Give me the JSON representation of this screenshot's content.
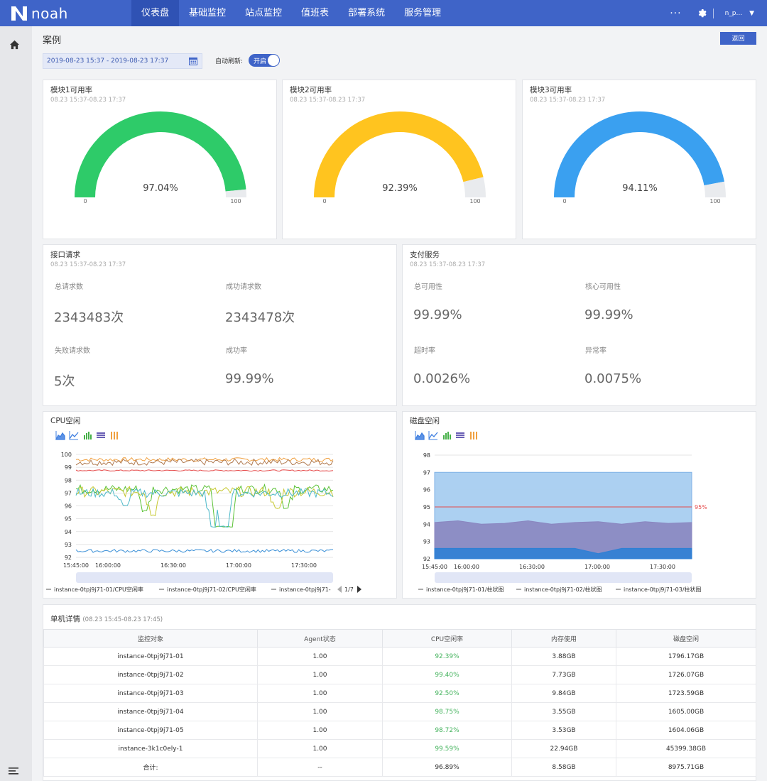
{
  "nav": {
    "logo_text": "noah",
    "items": [
      "仪表盘",
      "基础监控",
      "站点监控",
      "值班表",
      "部署系统",
      "服务管理"
    ],
    "more": "···",
    "user": "n_p..."
  },
  "page": {
    "title": "案例",
    "back_label": "返回",
    "date_range": "2019-08-23 15:37 - 2019-08-23 17:37",
    "auto_refresh_label": "自动刷新:",
    "toggle_label": "开启"
  },
  "gauges": [
    {
      "title": "模块1可用率",
      "range": "08.23 15:37-08.23 17:37",
      "value": 97.04,
      "value_text": "97.04%",
      "min": "0",
      "max": "100",
      "color": "#2ecb69"
    },
    {
      "title": "模块2可用率",
      "range": "08.23 15:37-08.23 17:37",
      "value": 92.39,
      "value_text": "92.39%",
      "min": "0",
      "max": "100",
      "color": "#ffc41f"
    },
    {
      "title": "模块3可用率",
      "range": "08.23 15:37-08.23 17:37",
      "value": 94.11,
      "value_text": "94.11%",
      "min": "0",
      "max": "100",
      "color": "#3aa0f0"
    }
  ],
  "api_panel": {
    "title": "接口请求",
    "range": "08.23 15:37-08.23 17:37",
    "stats": [
      {
        "label": "总请求数",
        "value": "2343483次"
      },
      {
        "label": "成功请求数",
        "value": "2343478次"
      },
      {
        "label": "失败请求数",
        "value": "5次"
      },
      {
        "label": "成功率",
        "value": "99.99%"
      }
    ]
  },
  "pay_panel": {
    "title": "支付服务",
    "range": "08.23 15:37-08.23 17:37",
    "stats": [
      {
        "label": "总可用性",
        "value": "99.99%"
      },
      {
        "label": "核心可用性",
        "value": "99.99%"
      },
      {
        "label": "超时率",
        "value": "0.0026%"
      },
      {
        "label": "异常率",
        "value": "0.0075%"
      }
    ]
  },
  "chart_data": [
    {
      "type": "line",
      "title": "CPU空闲",
      "x_ticks": [
        "15:45:00",
        "16:00:00",
        "16:30:00",
        "17:00:00",
        "17:30:00"
      ],
      "y_ticks": [
        92,
        93,
        94,
        95,
        96,
        97,
        98,
        99,
        100
      ],
      "ylim": [
        92,
        100
      ],
      "legend": [
        "instance-0tpj9j71-01/CPU空闲率",
        "instance-0tpj9j71-02/CPU空闲率",
        "instance-0tpj9j71-"
      ],
      "legend_page": "1/7",
      "series": [
        {
          "name": "instance-0tpj9j71-01/CPU空闲率",
          "color": "#f0a040",
          "base": 99.6,
          "noise": 0.15,
          "dips": []
        },
        {
          "name": "instance-0tpj9j71-02/CPU空闲率",
          "color": "#b07a50",
          "base": 99.4,
          "noise": 0.25,
          "dips": []
        },
        {
          "series_index": 3,
          "color": "#e54b4b",
          "base": 98.75,
          "noise": 0.05,
          "dips": []
        },
        {
          "series_index": 4,
          "color": "#5bc236",
          "base": 97.3,
          "noise": 0.35,
          "dips": [
            [
              0.27,
              95.6
            ],
            [
              0.55,
              94.4
            ],
            [
              0.6,
              94.4
            ],
            [
              0.82,
              95.8
            ]
          ]
        },
        {
          "series_index": 5,
          "color": "#c6c830",
          "base": 97.1,
          "noise": 0.4,
          "dips": [
            [
              0.3,
              95.3
            ],
            [
              0.78,
              95.8
            ]
          ]
        },
        {
          "series_index": 6,
          "color": "#4ab8c8",
          "base": 97.0,
          "noise": 0.35,
          "dips": [
            [
              0.19,
              96.0
            ],
            [
              0.53,
              94.4
            ],
            [
              0.58,
              94.3
            ]
          ]
        },
        {
          "series_index": 7,
          "color": "#3a8fd6",
          "base": 92.5,
          "noise": 0.12,
          "dips": []
        }
      ]
    },
    {
      "type": "area",
      "title": "磁盘空闲",
      "x_ticks": [
        "15:45:00",
        "16:00:00",
        "16:30:00",
        "17:00:00",
        "17:30:00"
      ],
      "y_ticks": [
        92,
        93,
        94,
        95,
        96,
        97,
        98
      ],
      "ylim": [
        92,
        98
      ],
      "threshold": 95,
      "threshold_label": "95%",
      "legend": [
        "instance-0tpj9j71-01/柱状图",
        "instance-0tpj9j71-02/柱状图",
        "instance-0tpj9j71-03/柱状图"
      ],
      "series": [
        {
          "name": "instance-0tpj9j71-01/柱状图",
          "color": "#a8cdf0",
          "values": [
            97.0,
            97.0,
            97.0,
            97.0,
            97.0,
            97.0,
            97.0,
            97.0,
            97.0,
            97.0,
            97.0,
            97.0
          ]
        },
        {
          "name": "instance-0tpj9j71-02/柱状图",
          "color": "#8a86c0",
          "values": [
            94.1,
            94.2,
            94.0,
            94.05,
            94.2,
            94.0,
            94.1,
            94.15,
            94.0,
            94.15,
            94.05,
            94.1
          ]
        },
        {
          "name": "instance-0tpj9j71-03/柱状图",
          "color": "#2e7fd4",
          "values": [
            92.6,
            92.6,
            92.6,
            92.6,
            92.6,
            92.6,
            92.6,
            92.3,
            92.6,
            92.6,
            92.6,
            92.6
          ]
        }
      ]
    }
  ],
  "table": {
    "title": "单机详情",
    "range": "(08.23 15:45-08.23 17:45)",
    "headers": [
      "监控对象",
      "Agent状态",
      "CPU空闲率",
      "内存使用",
      "磁盘空闲"
    ],
    "rows": [
      [
        "instance-0tpj9j71-01",
        "1.00",
        "92.39%",
        "3.88GB",
        "1796.17GB"
      ],
      [
        "instance-0tpj9j71-02",
        "1.00",
        "99.40%",
        "7.73GB",
        "1726.07GB"
      ],
      [
        "instance-0tpj9j71-03",
        "1.00",
        "92.50%",
        "9.84GB",
        "1723.59GB"
      ],
      [
        "instance-0tpj9j71-04",
        "1.00",
        "98.75%",
        "3.55GB",
        "1605.00GB"
      ],
      [
        "instance-0tpj9j71-05",
        "1.00",
        "98.72%",
        "3.53GB",
        "1604.06GB"
      ],
      [
        "instance-3k1c0ely-1",
        "1.00",
        "99.59%",
        "22.94GB",
        "45399.38GB"
      ],
      [
        "合计:",
        "--",
        "96.89%",
        "8.58GB",
        "8975.71GB"
      ]
    ]
  }
}
